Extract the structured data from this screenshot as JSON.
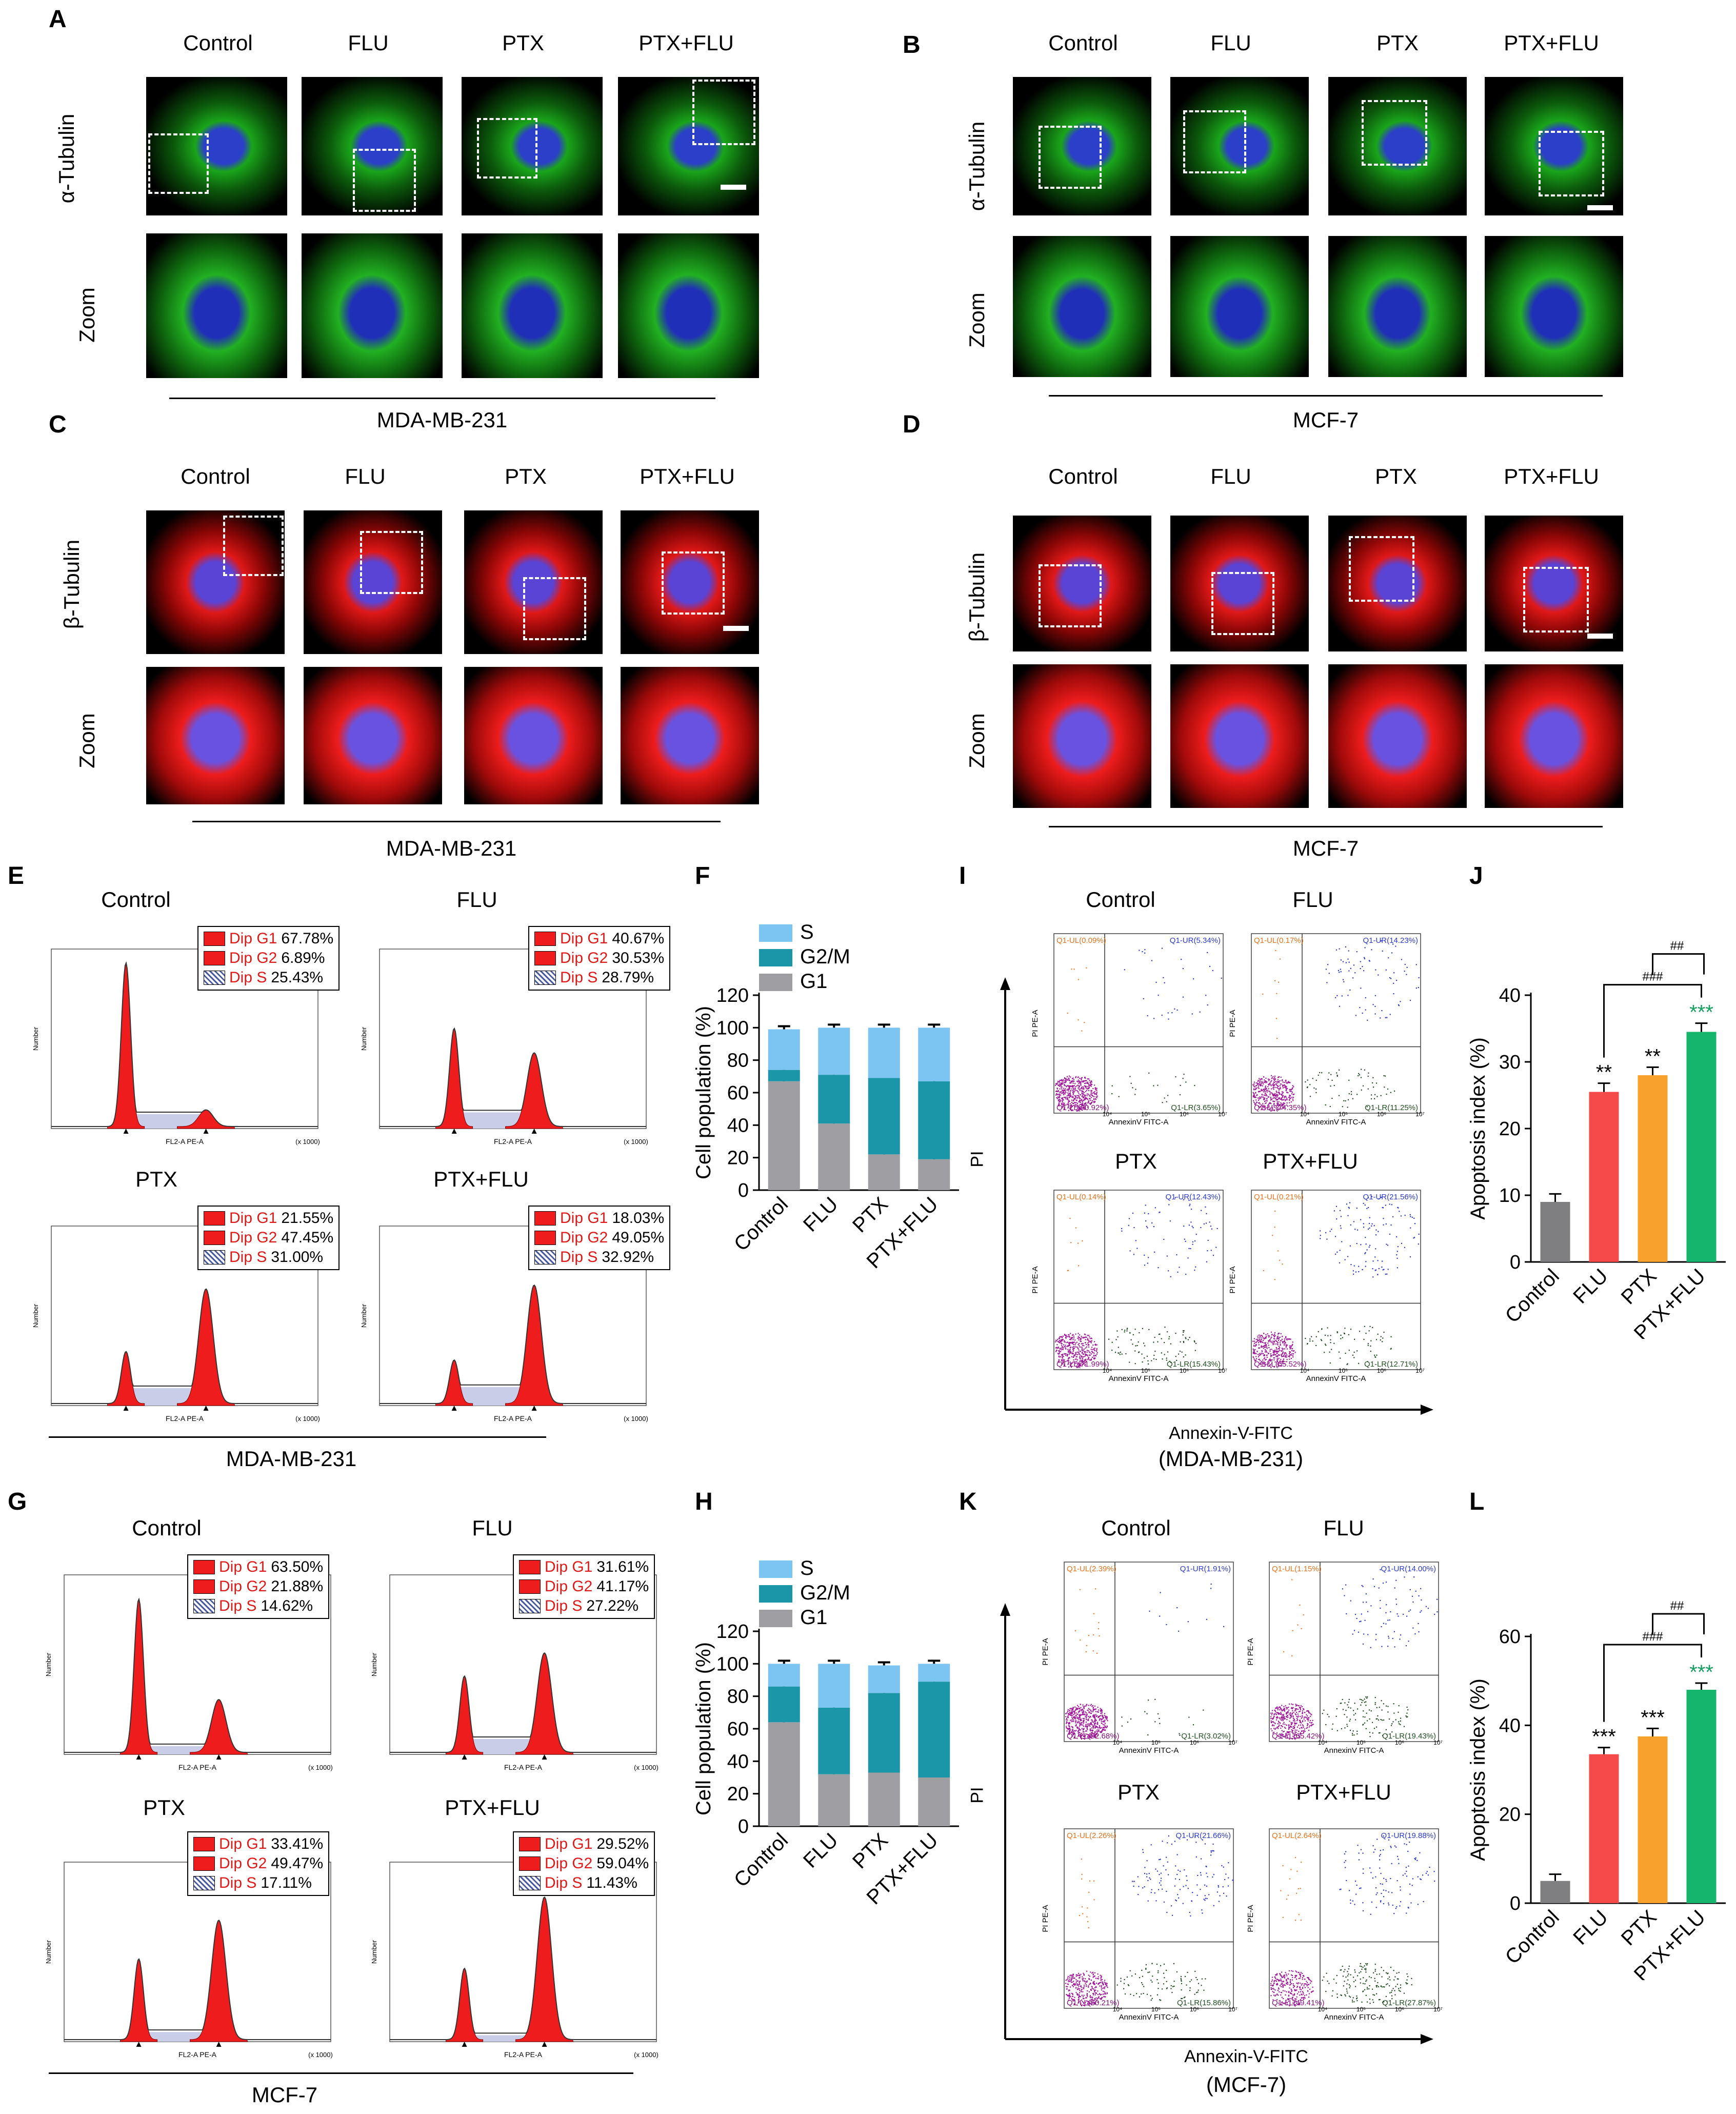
{
  "panels": {
    "A": "A",
    "B": "B",
    "C": "C",
    "D": "D",
    "E": "E",
    "F": "F",
    "G": "G",
    "H": "H",
    "I": "I",
    "J": "J",
    "K": "K",
    "L": "L"
  },
  "groups": [
    "Control",
    "FLU",
    "PTX",
    "PTX+FLU"
  ],
  "rows": {
    "alpha": "α-Tubulin",
    "beta": "β-Tubulin",
    "zoom": "Zoom"
  },
  "cell_lines": {
    "mda": "MDA-MB-231",
    "mcf": "MCF-7",
    "mda_paren": "(MDA-MB-231)",
    "mcf_paren": "(MCF-7)"
  },
  "flow": {
    "x_label": "FL2-A PE-A",
    "x_unit": "(x 1000)",
    "y_label": "Number",
    "legend_names": [
      "Dip G1",
      "Dip G2",
      "Dip S"
    ],
    "E": [
      [
        "67.78%",
        "6.89%",
        "25.43%"
      ],
      [
        "40.67%",
        "30.53%",
        "28.79%"
      ],
      [
        "21.55%",
        "47.45%",
        "31.00%"
      ],
      [
        "18.03%",
        "49.05%",
        "32.92%"
      ]
    ],
    "G": [
      [
        "63.50%",
        "21.88%",
        "14.62%"
      ],
      [
        "31.61%",
        "41.17%",
        "27.22%"
      ],
      [
        "33.41%",
        "49.47%",
        "17.11%"
      ],
      [
        "29.52%",
        "59.04%",
        "11.43%"
      ]
    ]
  },
  "annexin": {
    "x_axis": "Annexin-V-FITC",
    "y_axis": "PI",
    "plot_x": "AnnexinV FITC-A",
    "plot_y": "PI PE-A",
    "I": [
      {
        "UL": "Q1-UL(0.09%)",
        "UR": "Q1-UR(5.34%)",
        "LL": "Q1-LL(90.92%)",
        "LR": "Q1-LR(3.65%)"
      },
      {
        "UL": "Q1-UL(0.17%)",
        "UR": "Q1-UR(14.23%)",
        "LL": "Q1-LL(74.35%)",
        "LR": "Q1-LR(11.25%)"
      },
      {
        "UL": "Q1-UL(0.14%)",
        "UR": "Q1-UR(12.43%)",
        "LL": "Q1-LL(71.99%)",
        "LR": "Q1-LR(15.43%)"
      },
      {
        "UL": "Q1-UL(0.21%)",
        "UR": "Q1-UR(21.56%)",
        "LL": "Q1-LL(65.52%)",
        "LR": "Q1-LR(12.71%)"
      }
    ],
    "K": [
      {
        "UL": "Q1-UL(2.39%)",
        "UR": "Q1-UR(1.91%)",
        "LL": "Q1-LL(92.68%)",
        "LR": "Q1-LR(3.02%)"
      },
      {
        "UL": "Q1-UL(1.15%)",
        "UR": "Q1-UR(14.00%)",
        "LL": "Q1-LL(65.42%)",
        "LR": "Q1-LR(19.43%)"
      },
      {
        "UL": "Q1-UL(2.26%)",
        "UR": "Q1-UR(21.66%)",
        "LL": "Q1-LL(60.21%)",
        "LR": "Q1-LR(15.86%)"
      },
      {
        "UL": "Q1-UL(2.64%)",
        "UR": "Q1-UR(19.88%)",
        "LL": "Q1-LL(49.41%)",
        "LR": "Q1-LR(27.87%)"
      }
    ]
  },
  "chart_data": [
    {
      "id": "F",
      "type": "bar",
      "stacked": true,
      "categories": [
        "Control",
        "FLU",
        "PTX",
        "PTX+FLU"
      ],
      "series": [
        {
          "name": "G1",
          "values": [
            67,
            41,
            22,
            19
          ],
          "color": "#9e9ea3"
        },
        {
          "name": "G2/M",
          "values": [
            7,
            30,
            47,
            48
          ],
          "color": "#1b95a8"
        },
        {
          "name": "S",
          "values": [
            25,
            29,
            31,
            33
          ],
          "color": "#7cc4f2"
        }
      ],
      "ylabel": "Cell population (%)",
      "ylim": [
        0,
        120
      ],
      "yticks": [
        0,
        20,
        40,
        60,
        80,
        100,
        120
      ],
      "legend": "top-left"
    },
    {
      "id": "H",
      "type": "bar",
      "stacked": true,
      "categories": [
        "Control",
        "FLU",
        "PTX",
        "PTX+FLU"
      ],
      "series": [
        {
          "name": "G1",
          "values": [
            64,
            32,
            33,
            30
          ],
          "color": "#9e9ea3"
        },
        {
          "name": "G2/M",
          "values": [
            22,
            41,
            49,
            59
          ],
          "color": "#1b95a8"
        },
        {
          "name": "S",
          "values": [
            14,
            27,
            17,
            11
          ],
          "color": "#7cc4f2"
        }
      ],
      "ylabel": "Cell population (%)",
      "ylim": [
        0,
        120
      ],
      "yticks": [
        0,
        20,
        40,
        60,
        80,
        100,
        120
      ],
      "legend": "top-left"
    },
    {
      "id": "J",
      "type": "bar",
      "categories": [
        "Control",
        "FLU",
        "PTX",
        "PTX+FLU"
      ],
      "values": [
        9,
        25.5,
        28,
        34.5
      ],
      "errors": [
        1.2,
        1.3,
        1.2,
        1.3
      ],
      "colors": [
        "#7f7f82",
        "#f44a4a",
        "#f8a12c",
        "#16b56e"
      ],
      "significance": [
        "",
        "**",
        "**",
        "***"
      ],
      "comparisons": [
        "###",
        "##"
      ],
      "ylabel": "Apoptosis index (%)",
      "ylim": [
        0,
        40
      ],
      "yticks": [
        0,
        10,
        20,
        30,
        40
      ]
    },
    {
      "id": "L",
      "type": "bar",
      "categories": [
        "Control",
        "FLU",
        "PTX",
        "PTX+FLU"
      ],
      "values": [
        5,
        33.5,
        37.5,
        48
      ],
      "errors": [
        1.5,
        1.5,
        1.8,
        1.5
      ],
      "colors": [
        "#7f7f82",
        "#f44a4a",
        "#f8a12c",
        "#16b56e"
      ],
      "significance": [
        "",
        "***",
        "***",
        "***"
      ],
      "comparisons": [
        "###",
        "##"
      ],
      "ylabel": "Apoptosis index (%)",
      "ylim": [
        0,
        60
      ],
      "yticks": [
        0,
        20,
        40,
        60
      ]
    }
  ]
}
